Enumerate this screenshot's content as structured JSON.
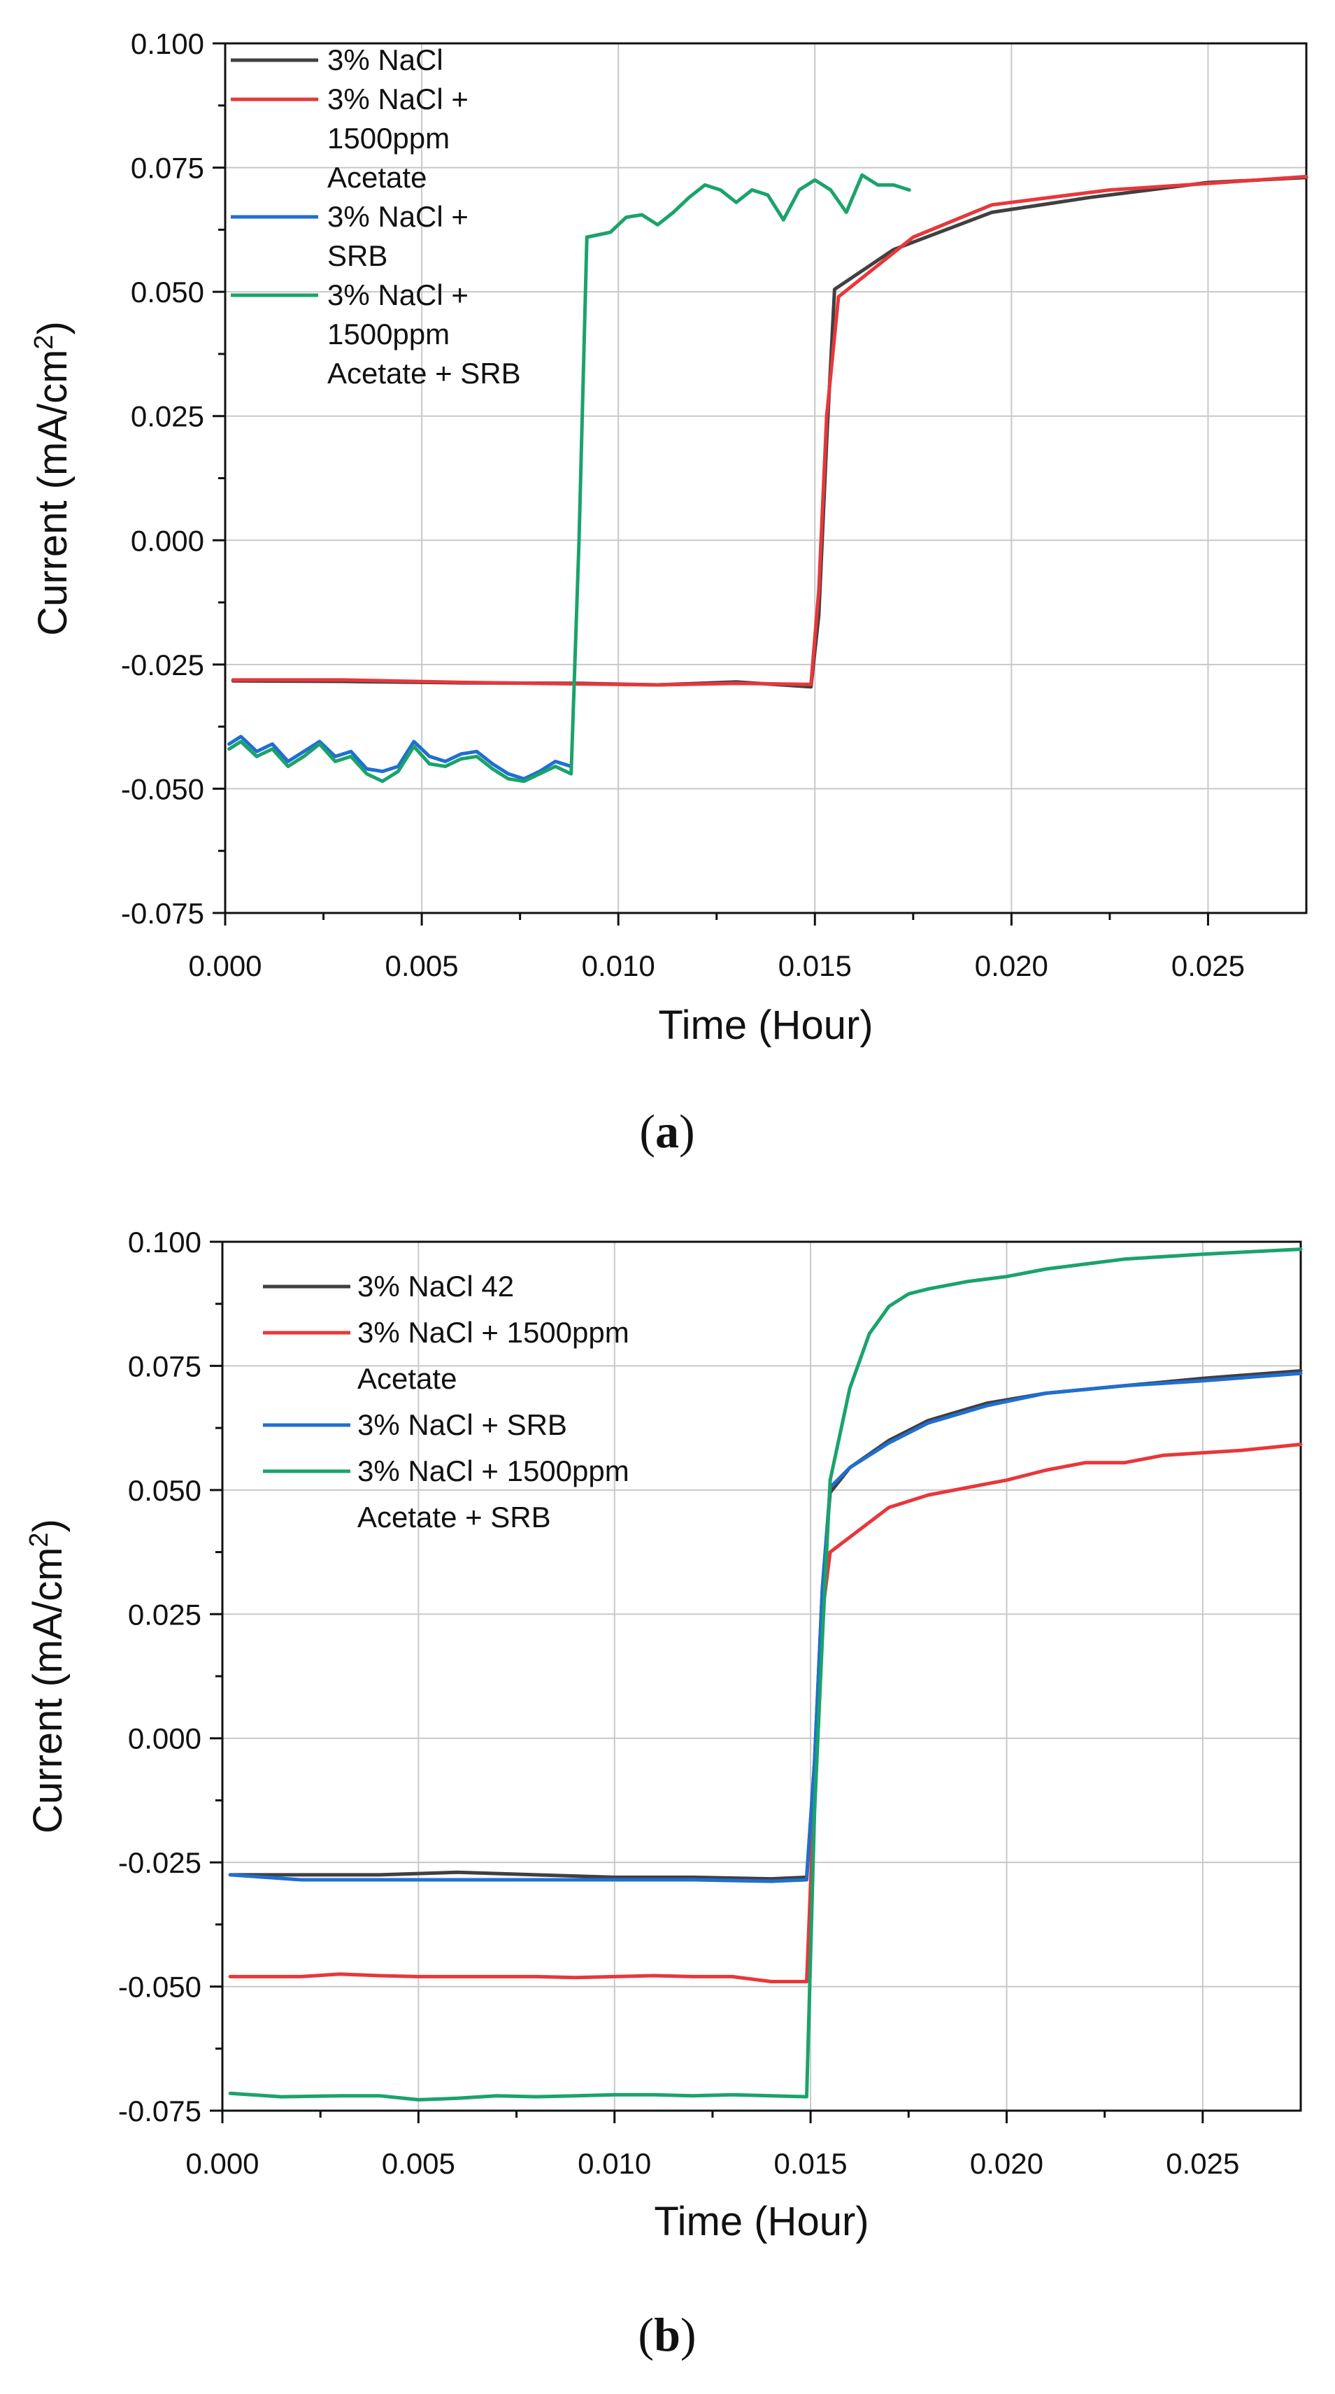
{
  "chart_data": [
    {
      "type": "line",
      "panel": "a",
      "xlabel": "Time (Hour)",
      "ylabel_main": "Current (mA/cm",
      "ylabel_sup": "2",
      "ylabel_end": ")",
      "xlim": [
        0,
        0.0275
      ],
      "ylim": [
        -0.075,
        0.1
      ],
      "xticks": [
        0,
        0.005,
        0.01,
        0.015,
        0.02,
        0.025
      ],
      "xtick_labels": [
        "0.000",
        "0.005",
        "0.010",
        "0.015",
        "0.020",
        "0.025"
      ],
      "yticks": [
        -0.075,
        -0.05,
        -0.025,
        0,
        0.025,
        0.05,
        0.075,
        0.1
      ],
      "ytick_labels": [
        "-0.075",
        "-0.050",
        "-0.025",
        "0.000",
        "0.025",
        "0.050",
        "0.075",
        "0.100"
      ],
      "grid": true,
      "legend_position": "top-left",
      "series": [
        {
          "name": "3% NaCl",
          "legend_lines": [
            "3% NaCl"
          ],
          "color": "#404040",
          "x": [
            0.0002,
            0.003,
            0.006,
            0.009,
            0.011,
            0.013,
            0.0149,
            0.0151,
            0.0153,
            0.0155,
            0.017,
            0.0195,
            0.022,
            0.025,
            0.0275
          ],
          "y": [
            -0.0283,
            -0.0284,
            -0.0287,
            -0.0288,
            -0.0291,
            -0.0285,
            -0.0295,
            -0.015,
            0.02,
            0.0505,
            0.0585,
            0.066,
            0.069,
            0.072,
            0.073
          ]
        },
        {
          "name": "3% NaCl + 1500ppm Acetate",
          "legend_lines": [
            "3% NaCl +",
            "1500ppm",
            "Acetate"
          ],
          "color": "#e8373a",
          "x": [
            0.0002,
            0.003,
            0.006,
            0.009,
            0.011,
            0.013,
            0.0149,
            0.0151,
            0.0153,
            0.0156,
            0.0175,
            0.0195,
            0.0225,
            0.025,
            0.0275
          ],
          "y": [
            -0.0281,
            -0.0281,
            -0.0286,
            -0.0289,
            -0.0291,
            -0.0288,
            -0.029,
            -0.01,
            0.025,
            0.049,
            0.061,
            0.0675,
            0.0705,
            0.0718,
            0.0732
          ]
        },
        {
          "name": "3% NaCl + SRB",
          "legend_lines": [
            "3% NaCl +",
            "SRB"
          ],
          "color": "#1f6fd1",
          "x": [
            0.0001,
            0.0004,
            0.0008,
            0.0012,
            0.0016,
            0.002,
            0.0024,
            0.0028,
            0.0032,
            0.0036,
            0.004,
            0.0044,
            0.0048,
            0.0052,
            0.0056,
            0.006,
            0.0064,
            0.0068,
            0.0072,
            0.0076,
            0.008,
            0.0084,
            0.0088
          ],
          "y": [
            -0.041,
            -0.0395,
            -0.0425,
            -0.041,
            -0.0445,
            -0.0425,
            -0.0405,
            -0.0435,
            -0.0425,
            -0.046,
            -0.0465,
            -0.0455,
            -0.0405,
            -0.0435,
            -0.0445,
            -0.043,
            -0.0425,
            -0.045,
            -0.047,
            -0.048,
            -0.0465,
            -0.0445,
            -0.0455
          ]
        },
        {
          "name": "3% NaCl + 1500ppm Acetate + SRB",
          "legend_lines": [
            "3% NaCl +",
            "1500ppm",
            "Acetate + SRB"
          ],
          "color": "#1aa36b",
          "x": [
            0.0001,
            0.0004,
            0.0008,
            0.0012,
            0.0016,
            0.002,
            0.0024,
            0.0028,
            0.0032,
            0.0036,
            0.004,
            0.0044,
            0.0048,
            0.0052,
            0.0056,
            0.006,
            0.0064,
            0.0068,
            0.0072,
            0.0076,
            0.008,
            0.0084,
            0.0088,
            0.009,
            0.0092,
            0.0095,
            0.0098,
            0.0102,
            0.0106,
            0.011,
            0.0114,
            0.0118,
            0.0122,
            0.0126,
            0.013,
            0.0134,
            0.0138,
            0.0142,
            0.0146,
            0.015,
            0.0154,
            0.0158,
            0.0162,
            0.0166,
            0.017,
            0.0174
          ],
          "y": [
            -0.042,
            -0.0405,
            -0.0435,
            -0.042,
            -0.0455,
            -0.0435,
            -0.041,
            -0.0445,
            -0.0435,
            -0.047,
            -0.0485,
            -0.0465,
            -0.0415,
            -0.045,
            -0.0455,
            -0.044,
            -0.0435,
            -0.046,
            -0.048,
            -0.0485,
            -0.047,
            -0.0455,
            -0.047,
            0.0,
            0.061,
            0.0615,
            0.062,
            0.065,
            0.0655,
            0.0635,
            0.066,
            0.069,
            0.0715,
            0.0705,
            0.068,
            0.0705,
            0.0695,
            0.0645,
            0.0705,
            0.0725,
            0.0705,
            0.066,
            0.0735,
            0.0715,
            0.0715,
            0.0705
          ]
        }
      ]
    },
    {
      "type": "line",
      "panel": "b",
      "xlabel": "Time (Hour)",
      "ylabel_main": "Current (mA/cm",
      "ylabel_sup": "2",
      "ylabel_end": ")",
      "xlim": [
        0,
        0.0275
      ],
      "ylim": [
        -0.075,
        0.1
      ],
      "xticks": [
        0,
        0.005,
        0.01,
        0.015,
        0.02,
        0.025
      ],
      "xtick_labels": [
        "0.000",
        "0.005",
        "0.010",
        "0.015",
        "0.020",
        "0.025"
      ],
      "yticks": [
        -0.075,
        -0.05,
        -0.025,
        0,
        0.025,
        0.05,
        0.075,
        0.1
      ],
      "ytick_labels": [
        "-0.075",
        "-0.050",
        "-0.025",
        "0.000",
        "0.025",
        "0.050",
        "0.075",
        "0.100"
      ],
      "grid": true,
      "legend_position": "top-left",
      "series": [
        {
          "name": "3% NaCl 42",
          "legend_lines": [
            "3% NaCl 42"
          ],
          "color": "#404040",
          "x": [
            0.0002,
            0.002,
            0.004,
            0.006,
            0.008,
            0.01,
            0.012,
            0.014,
            0.0149,
            0.0151,
            0.0153,
            0.0155,
            0.016,
            0.017,
            0.018,
            0.0195,
            0.021,
            0.023,
            0.025,
            0.0275
          ],
          "y": [
            -0.0275,
            -0.0275,
            -0.0275,
            -0.027,
            -0.0275,
            -0.028,
            -0.028,
            -0.0283,
            -0.028,
            -0.005,
            0.03,
            0.0495,
            0.0545,
            0.06,
            0.064,
            0.0675,
            0.0695,
            0.071,
            0.0725,
            0.074
          ]
        },
        {
          "name": "3% NaCl + 1500ppm Acetate",
          "legend_lines": [
            "3% NaCl + 1500ppm",
            "Acetate"
          ],
          "color": "#e8373a",
          "x": [
            0.0002,
            0.001,
            0.002,
            0.003,
            0.004,
            0.005,
            0.006,
            0.007,
            0.008,
            0.009,
            0.01,
            0.011,
            0.012,
            0.013,
            0.014,
            0.0149,
            0.0151,
            0.0153,
            0.0155,
            0.016,
            0.017,
            0.018,
            0.019,
            0.02,
            0.021,
            0.022,
            0.023,
            0.024,
            0.025,
            0.026,
            0.0275
          ],
          "y": [
            -0.048,
            -0.048,
            -0.048,
            -0.0475,
            -0.0478,
            -0.048,
            -0.048,
            -0.048,
            -0.048,
            -0.0482,
            -0.048,
            -0.0478,
            -0.048,
            -0.048,
            -0.049,
            -0.049,
            -0.01,
            0.025,
            0.0375,
            0.0405,
            0.0465,
            0.049,
            0.0505,
            0.052,
            0.054,
            0.0555,
            0.0555,
            0.057,
            0.0575,
            0.058,
            0.0592
          ]
        },
        {
          "name": "3% NaCl + SRB",
          "legend_lines": [
            "3% NaCl + SRB"
          ],
          "color": "#1f6fd1",
          "x": [
            0.0002,
            0.002,
            0.004,
            0.006,
            0.008,
            0.01,
            0.012,
            0.014,
            0.0149,
            0.0151,
            0.0153,
            0.0155,
            0.016,
            0.017,
            0.018,
            0.0195,
            0.021,
            0.023,
            0.025,
            0.0275
          ],
          "y": [
            -0.0275,
            -0.0285,
            -0.0285,
            -0.0285,
            -0.0285,
            -0.0285,
            -0.0285,
            -0.0288,
            -0.0285,
            -0.005,
            0.03,
            0.0505,
            0.0545,
            0.0595,
            0.0635,
            0.067,
            0.0695,
            0.071,
            0.072,
            0.0735
          ]
        },
        {
          "name": "3% NaCl + 1500ppm Acetate + SRB",
          "legend_lines": [
            "3% NaCl + 1500ppm",
            "Acetate + SRB"
          ],
          "color": "#1aa36b",
          "x": [
            0.0002,
            0.0015,
            0.003,
            0.004,
            0.005,
            0.006,
            0.007,
            0.008,
            0.009,
            0.01,
            0.011,
            0.012,
            0.013,
            0.014,
            0.0149,
            0.0151,
            0.0153,
            0.0155,
            0.016,
            0.0165,
            0.017,
            0.0175,
            0.018,
            0.019,
            0.02,
            0.021,
            0.022,
            0.023,
            0.025,
            0.0275
          ],
          "y": [
            -0.0715,
            -0.0722,
            -0.072,
            -0.072,
            -0.0728,
            -0.0725,
            -0.072,
            -0.0722,
            -0.072,
            -0.0718,
            -0.0718,
            -0.072,
            -0.0718,
            -0.072,
            -0.0722,
            -0.015,
            0.02,
            0.052,
            0.0705,
            0.0815,
            0.087,
            0.0895,
            0.0905,
            0.092,
            0.093,
            0.0945,
            0.0955,
            0.0965,
            0.0975,
            0.0985
          ]
        }
      ]
    }
  ],
  "panel_labels": {
    "a_open": "(",
    "a_letter": "a",
    "a_close": ")",
    "b_open": "(",
    "b_letter": "b",
    "b_close": ")"
  }
}
